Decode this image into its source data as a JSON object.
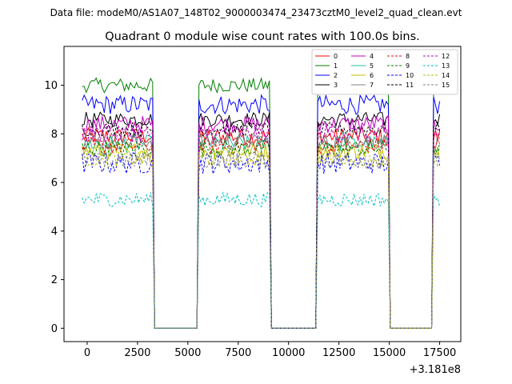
{
  "header": {
    "data_file": "Data file: modeM0/AS1A07_148T02_9000003474_23473cztM0_level2_quad_clean.evt"
  },
  "chart_data": {
    "type": "line",
    "title": "Quadrant 0 module wise count rates with 100.0s bins.",
    "xlabel": "",
    "ylabel": "",
    "x_offset_label": "+3.181e8",
    "xlim": [
      -1150,
      18550
    ],
    "ylim": [
      -0.55,
      11.6
    ],
    "xticks": [
      0,
      2500,
      5000,
      7500,
      10000,
      12500,
      15000,
      17500
    ],
    "yticks": [
      0,
      2,
      4,
      6,
      8,
      10
    ],
    "grid": false,
    "legend_position": "top-right",
    "bin_size_s": 100,
    "active_intervals": [
      {
        "start": -250,
        "end": 3250
      },
      {
        "start": 5550,
        "end": 9050
      },
      {
        "start": 11450,
        "end": 14950
      },
      {
        "start": 17200,
        "end": 17550
      }
    ],
    "gap_level": 0,
    "series": [
      {
        "name": "0",
        "color": "#ff0000",
        "dash": "solid",
        "mean": 7.9,
        "noise": 0.35
      },
      {
        "name": "1",
        "color": "#008000",
        "dash": "solid",
        "mean": 10.0,
        "noise": 0.3
      },
      {
        "name": "2",
        "color": "#0000ff",
        "dash": "solid",
        "mean": 9.2,
        "noise": 0.4
      },
      {
        "name": "3",
        "color": "#000000",
        "dash": "solid",
        "mean": 8.6,
        "noise": 0.3
      },
      {
        "name": "4",
        "color": "#bf00bf",
        "dash": "solid",
        "mean": 8.4,
        "noise": 0.35
      },
      {
        "name": "5",
        "color": "#1fc0a0",
        "dash": "solid",
        "mean": 7.6,
        "noise": 0.35
      },
      {
        "name": "6",
        "color": "#bfbf00",
        "dash": "solid",
        "mean": 7.3,
        "noise": 0.35
      },
      {
        "name": "7",
        "color": "#808080",
        "dash": "solid",
        "mean": 7.7,
        "noise": 0.35
      },
      {
        "name": "8",
        "color": "#ff0000",
        "dash": "dashed",
        "mean": 7.5,
        "noise": 0.35
      },
      {
        "name": "9",
        "color": "#008000",
        "dash": "dashed",
        "mean": 7.4,
        "noise": 0.35
      },
      {
        "name": "10",
        "color": "#0000ff",
        "dash": "dashed",
        "mean": 6.8,
        "noise": 0.45
      },
      {
        "name": "11",
        "color": "#000000",
        "dash": "dashed",
        "mean": 8.2,
        "noise": 0.3
      },
      {
        "name": "12",
        "color": "#bf00bf",
        "dash": "dashed",
        "mean": 8.0,
        "noise": 0.35
      },
      {
        "name": "13",
        "color": "#00bfbf",
        "dash": "dashed",
        "mean": 5.3,
        "noise": 0.3
      },
      {
        "name": "14",
        "color": "#bfbf00",
        "dash": "dashed",
        "mean": 7.0,
        "noise": 0.35
      },
      {
        "name": "15",
        "color": "#808080",
        "dash": "dashed",
        "mean": 6.9,
        "noise": 0.35
      }
    ]
  }
}
